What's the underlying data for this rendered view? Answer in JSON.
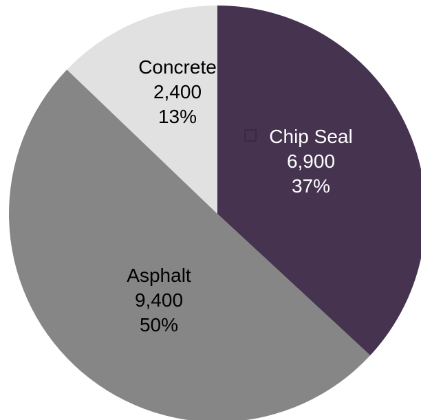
{
  "chart_data": {
    "type": "pie",
    "slices": [
      {
        "label": "Chip Seal",
        "value": 6900,
        "value_text": "6,900",
        "percent_text": "37%",
        "color": "#45334f"
      },
      {
        "label": "Asphalt",
        "value": 9400,
        "value_text": "9,400",
        "percent_text": "50%",
        "color": "#868686"
      },
      {
        "label": "Concrete",
        "value": 2400,
        "value_text": "2,400",
        "percent_text": "13%",
        "color": "#e1e1e1"
      }
    ],
    "start_angle": "12 o'clock",
    "direction": "clockwise",
    "legend": "none"
  }
}
